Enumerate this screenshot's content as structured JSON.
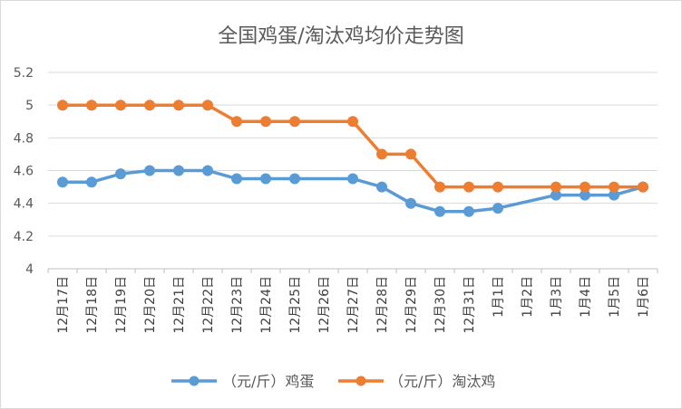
{
  "chart_data": {
    "type": "line",
    "title": "全国鸡蛋/淘汰鸡均价走势图",
    "categories": [
      "12月17日",
      "12月18日",
      "12月19日",
      "12月20日",
      "12月21日",
      "12月22日",
      "12月23日",
      "12月24日",
      "12月25日",
      "12月26日",
      "12月27日",
      "12月28日",
      "12月29日",
      "12月30日",
      "12月31日",
      "1月1日",
      "1月2日",
      "1月3日",
      "1月4日",
      "1月5日",
      "1月6日"
    ],
    "ylim": [
      4,
      5.2
    ],
    "yticks": [
      "4",
      "4.2",
      "4.4",
      "4.6",
      "4.8",
      "5",
      "5.2"
    ],
    "grid": true,
    "legend_position": "bottom",
    "series": [
      {
        "name": "（元/斤）鸡蛋",
        "color": "#5B9BD5",
        "values": [
          4.53,
          4.53,
          4.58,
          4.6,
          4.6,
          4.6,
          4.55,
          4.55,
          4.55,
          null,
          4.55,
          4.5,
          4.4,
          4.35,
          4.35,
          4.37,
          null,
          4.45,
          4.45,
          4.45,
          4.5
        ]
      },
      {
        "name": "（元/斤）淘汰鸡",
        "color": "#ED7D31",
        "values": [
          5.0,
          5.0,
          5.0,
          5.0,
          5.0,
          5.0,
          4.9,
          4.9,
          4.9,
          null,
          4.9,
          4.7,
          4.7,
          4.5,
          4.5,
          4.5,
          null,
          4.5,
          4.5,
          4.5,
          4.5
        ]
      }
    ]
  }
}
